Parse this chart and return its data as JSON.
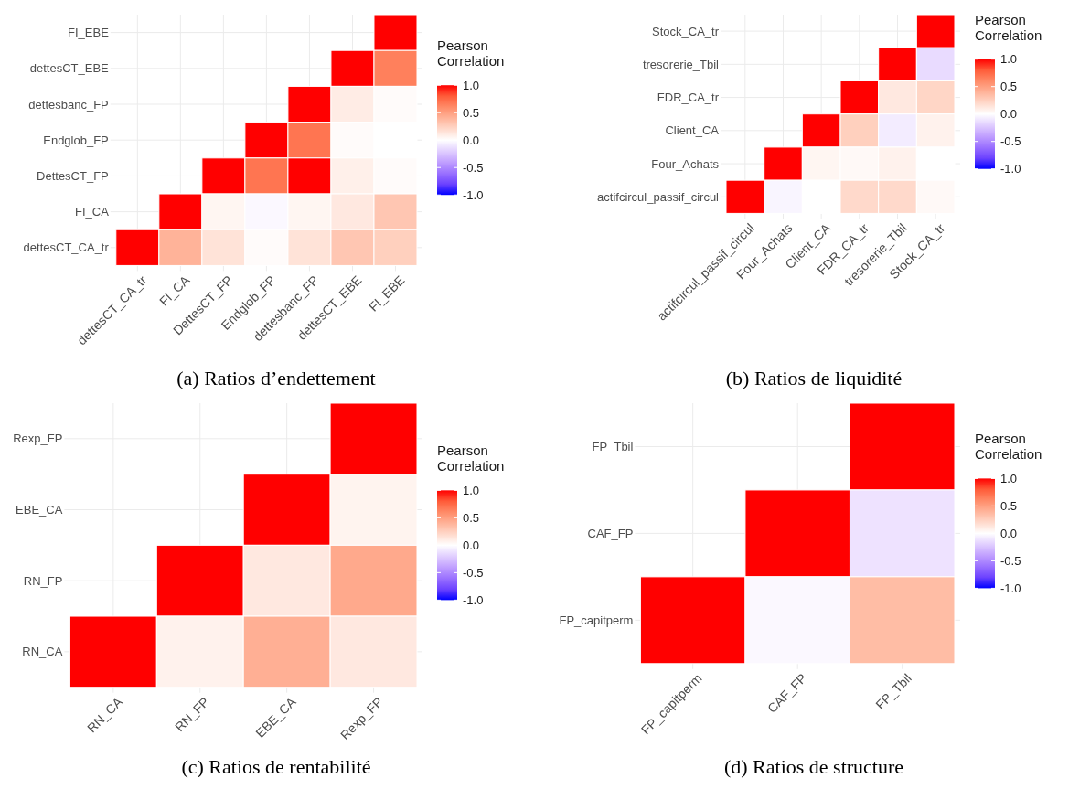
{
  "chart_data": [
    {
      "type": "heatmap",
      "annotations": [
        "(a) Ratios d’endettement"
      ],
      "clabel": "Pearson Correlation",
      "grid": true,
      "categories": [
        "dettesCT_CA_tr",
        "FI_CA",
        "DettesCT_FP",
        "Endglob_FP",
        "dettesbanc_FP",
        "dettesCT_EBE",
        "FI_EBE"
      ],
      "y_categories": [
        "FI_EBE",
        "dettesCT_EBE",
        "dettesbanc_FP",
        "Endglob_FP",
        "DettesCT_FP",
        "FI_CA",
        "dettesCT_CA_tr"
      ],
      "cells": [
        [
          null,
          null,
          null,
          null,
          null,
          null,
          1
        ],
        [
          null,
          null,
          null,
          null,
          null,
          1,
          0.65
        ],
        [
          null,
          null,
          null,
          null,
          1,
          0.1,
          0.02
        ],
        [
          null,
          null,
          null,
          1,
          0.7,
          0.02,
          0
        ],
        [
          null,
          null,
          1,
          0.7,
          1,
          0.08,
          0.02
        ],
        [
          null,
          1,
          0.05,
          -0.03,
          0.05,
          0.12,
          0.3
        ],
        [
          1,
          0.4,
          0.15,
          0.02,
          0.15,
          0.3,
          0.25
        ]
      ],
      "clim": [
        -1,
        1
      ],
      "cticks": [
        {
          "value": -1,
          "label": "-1.0"
        },
        {
          "value": -0.5,
          "label": "-0.5"
        },
        {
          "value": 0,
          "label": "0.0"
        },
        {
          "value": 0.5,
          "label": "0.5"
        },
        {
          "value": 1,
          "label": "1.0"
        }
      ]
    },
    {
      "type": "heatmap",
      "annotations": [
        "(b) Ratios de liquidité"
      ],
      "clabel": "Pearson Correlation",
      "grid": true,
      "categories": [
        "actifcircul_passif_circul",
        "Four_Achats",
        "Client_CA",
        "FDR_CA_tr",
        "tresorerie_Tbil",
        "Stock_CA_tr"
      ],
      "y_categories": [
        "Stock_CA_tr",
        "tresorerie_Tbil",
        "FDR_CA_tr",
        "Client_CA",
        "Four_Achats",
        "actifcircul_passif_circul"
      ],
      "cells": [
        [
          null,
          null,
          null,
          null,
          null,
          1
        ],
        [
          null,
          null,
          null,
          null,
          1,
          -0.15
        ],
        [
          null,
          null,
          null,
          1,
          0.12,
          0.22
        ],
        [
          null,
          null,
          1,
          0.25,
          -0.08,
          0.07
        ],
        [
          null,
          1,
          0.05,
          0.03,
          0.07,
          0
        ],
        [
          1,
          -0.04,
          0,
          0.2,
          0.2,
          0.03
        ]
      ],
      "clim": [
        -1,
        1
      ],
      "cticks": [
        {
          "value": -1,
          "label": "-1.0"
        },
        {
          "value": -0.5,
          "label": "-0.5"
        },
        {
          "value": 0,
          "label": "0.0"
        },
        {
          "value": 0.5,
          "label": "0.5"
        },
        {
          "value": 1,
          "label": "1.0"
        }
      ]
    },
    {
      "type": "heatmap",
      "annotations": [
        "(c) Ratios de rentabilité"
      ],
      "clabel": "Pearson Correlation",
      "grid": true,
      "categories": [
        "RN_CA",
        "RN_FP",
        "EBE_CA",
        "Rexp_FP"
      ],
      "y_categories": [
        "Rexp_FP",
        "EBE_CA",
        "RN_FP",
        "RN_CA"
      ],
      "cells": [
        [
          null,
          null,
          null,
          1
        ],
        [
          null,
          null,
          1,
          0.06
        ],
        [
          null,
          1,
          0.12,
          0.45
        ],
        [
          1,
          0.07,
          0.42,
          0.12
        ]
      ],
      "clim": [
        -1,
        1
      ],
      "cticks": [
        {
          "value": -1,
          "label": "-1.0"
        },
        {
          "value": -0.5,
          "label": "-0.5"
        },
        {
          "value": 0,
          "label": "0.0"
        },
        {
          "value": 0.5,
          "label": "0.5"
        },
        {
          "value": 1,
          "label": "1.0"
        }
      ]
    },
    {
      "type": "heatmap",
      "annotations": [
        "(d) Ratios de structure"
      ],
      "clabel": "Pearson Correlation",
      "grid": true,
      "categories": [
        "FP_capitperm",
        "CAF_FP",
        "FP_Tbil"
      ],
      "y_categories": [
        "FP_Tbil",
        "CAF_FP",
        "FP_capitperm"
      ],
      "cells": [
        [
          null,
          null,
          1
        ],
        [
          null,
          1,
          -0.12
        ],
        [
          1,
          -0.03,
          0.35
        ]
      ],
      "clim": [
        -1,
        1
      ],
      "cticks": [
        {
          "value": -1,
          "label": "-1.0"
        },
        {
          "value": -0.5,
          "label": "-0.5"
        },
        {
          "value": 0,
          "label": "0.0"
        },
        {
          "value": 0.5,
          "label": "0.5"
        },
        {
          "value": 1,
          "label": "1.0"
        }
      ]
    }
  ]
}
